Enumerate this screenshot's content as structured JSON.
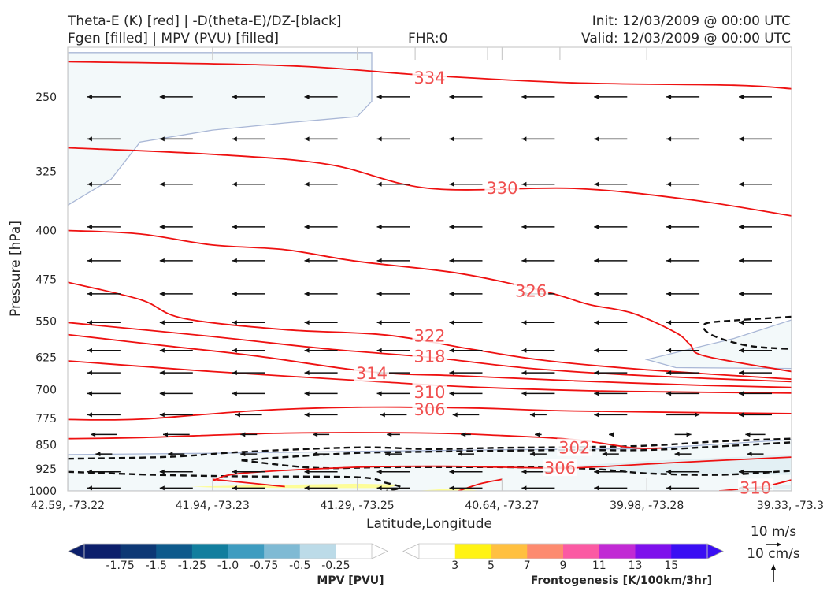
{
  "header": {
    "title_left_1": "Theta-E (K) [red] | -D(theta-E)/DZ-[black]",
    "title_left_2": "Fgen [filled] | MPV (PVU) [filled]",
    "fhr": "FHR:0",
    "init": "Init: 12/03/2009 @ 00:00 UTC",
    "valid": "Valid: 12/03/2009 @ 00:00 UTC"
  },
  "chart_data": {
    "type": "cross-section",
    "ylabel": "Pressure [hPa]",
    "xlabel": "Latitude,Longitude",
    "y_ticks": [
      "250",
      "325",
      "400",
      "475",
      "550",
      "625",
      "700",
      "775",
      "850",
      "925",
      "1000"
    ],
    "y_tick_values": [
      250,
      325,
      400,
      475,
      550,
      625,
      700,
      775,
      850,
      925,
      1000
    ],
    "x_ticks": [
      "42.59, -73.22",
      "41.94, -73.23",
      "41.29, -73.25",
      "40.64, -73.27",
      "39.98, -73.28",
      "39.33, -73.3"
    ],
    "ylim": [
      1000,
      210
    ],
    "xlim": [
      0,
      5
    ],
    "y_log": true,
    "grid": false,
    "theta_e_color": "#ee1111",
    "theta_e_contours": [
      {
        "label": "334",
        "label_pos": [
          2.5,
          234
        ],
        "points": [
          [
            0,
            221
          ],
          [
            1.5,
            224
          ],
          [
            2.5,
            232
          ],
          [
            3.5,
            238
          ],
          [
            4.6,
            240
          ],
          [
            5,
            243
          ]
        ]
      },
      {
        "label": "330",
        "label_pos": [
          3.0,
          345
        ],
        "points": [
          [
            0,
            299
          ],
          [
            1,
            306
          ],
          [
            1.8,
            317
          ],
          [
            2.5,
            345
          ],
          [
            3.5,
            345
          ],
          [
            4.3,
            359
          ],
          [
            5,
            380
          ]
        ]
      },
      {
        "label": "326",
        "label_pos": [
          3.2,
          495
        ],
        "points": [
          [
            0,
            400
          ],
          [
            0.5,
            405
          ],
          [
            1,
            421
          ],
          [
            1.5,
            428
          ],
          [
            2,
            446
          ],
          [
            2.7,
            465
          ],
          [
            3.3,
            496
          ],
          [
            3.6,
            519
          ],
          [
            3.9,
            535
          ],
          [
            4.2,
            573
          ],
          [
            4.3,
            598
          ],
          [
            4.4,
            622
          ],
          [
            5,
            657
          ]
        ]
      },
      {
        "label": "322",
        "label_pos": [
          2.5,
          580
        ],
        "points": [
          [
            0,
            480
          ],
          [
            0.5,
            510
          ],
          [
            0.8,
            545
          ],
          [
            1.5,
            567
          ],
          [
            2.2,
            578
          ],
          [
            2.8,
            608
          ],
          [
            3.3,
            632
          ],
          [
            4,
            653
          ],
          [
            5,
            675
          ]
        ]
      },
      {
        "label": "318",
        "label_pos": [
          2.5,
          623
        ],
        "points": [
          [
            0,
            553
          ],
          [
            1,
            581
          ],
          [
            1.8,
            607
          ],
          [
            2.5,
            625
          ],
          [
            3.2,
            650
          ],
          [
            4,
            667
          ],
          [
            5,
            681
          ]
        ]
      },
      {
        "label": "314",
        "label_pos": [
          2.1,
          662
        ],
        "points": [
          [
            0,
            577
          ],
          [
            0.7,
            601
          ],
          [
            1.3,
            622
          ],
          [
            2.1,
            658
          ],
          [
            2.7,
            667
          ],
          [
            3.5,
            679
          ],
          [
            4.4,
            690
          ],
          [
            5,
            695
          ]
        ]
      },
      {
        "label": "310",
        "label_pos": [
          2.5,
          707
        ],
        "points": [
          [
            0,
            633
          ],
          [
            0.5,
            645
          ],
          [
            1,
            657
          ],
          [
            2.1,
            680
          ],
          [
            2.8,
            694
          ],
          [
            3.6,
            703
          ],
          [
            4.2,
            706
          ],
          [
            5,
            709
          ]
        ]
      },
      {
        "label": "306",
        "label_pos": [
          2.5,
          752
        ],
        "points": [
          [
            0,
            778
          ],
          [
            0.5,
            777
          ],
          [
            1.3,
            754
          ],
          [
            2.0,
            745
          ],
          [
            2.8,
            747
          ],
          [
            3.5,
            755
          ],
          [
            5,
            762
          ]
        ]
      },
      {
        "label": "302",
        "label_pos": [
          3.5,
          860
        ],
        "points": [
          [
            0,
            832
          ],
          [
            0.5,
            829
          ],
          [
            1.5,
            816
          ],
          [
            2.5,
            816
          ],
          [
            3.0,
            823
          ],
          [
            3.5,
            835
          ],
          [
            3.9,
            859
          ],
          [
            4.1,
            860
          ]
        ]
      },
      {
        "label": "306",
        "label_pos": [
          3.4,
          923
        ],
        "points": [
          [
            1.0,
            966
          ],
          [
            1.2,
            940
          ],
          [
            2.0,
            920
          ],
          [
            2.6,
            917
          ],
          [
            3.0,
            920
          ],
          [
            3.5,
            922
          ],
          [
            4.2,
            905
          ],
          [
            5,
            888
          ]
        ]
      },
      {
        "label": "310",
        "label_pos": [
          4.75,
          990
        ],
        "points": [
          [
            4.5,
            1000
          ],
          [
            4.8,
            985
          ],
          [
            5,
            962
          ]
        ]
      },
      {
        "label": "",
        "label_pos": null,
        "points": [
          [
            1.0,
            960
          ],
          [
            1.5,
            985
          ]
        ]
      },
      {
        "label": "",
        "label_pos": null,
        "points": [
          [
            2.7,
            1000
          ],
          [
            2.85,
            975
          ],
          [
            3.0,
            960
          ]
        ]
      }
    ],
    "dthetae_dz_color": "#111111",
    "dthetae_dz_contours": [
      [
        [
          0,
          893
        ],
        [
          0.7,
          887
        ],
        [
          1.2,
          872
        ],
        [
          2.0,
          858
        ],
        [
          2.5,
          863
        ],
        [
          3.0,
          859
        ],
        [
          3.5,
          857
        ],
        [
          4.0,
          853
        ],
        [
          4.5,
          840
        ],
        [
          5,
          832
        ]
      ],
      [
        [
          1.2,
          898
        ],
        [
          1.5,
          888
        ],
        [
          2.0,
          875
        ],
        [
          2.5,
          871
        ],
        [
          3.0,
          868
        ],
        [
          3.5,
          866
        ],
        [
          4.0,
          866
        ],
        [
          4.5,
          855
        ],
        [
          5,
          843
        ]
      ],
      [
        [
          0,
          935
        ],
        [
          0.6,
          945
        ],
        [
          1.2,
          950
        ],
        [
          2.0,
          953
        ],
        [
          2.2,
          972
        ],
        [
          2.3,
          988
        ],
        [
          2.2,
          1000
        ]
      ],
      [
        [
          1.2,
          898
        ],
        [
          1.7,
          922
        ],
        [
          2.2,
          920
        ],
        [
          3.0,
          920
        ],
        [
          3.6,
          925
        ],
        [
          4.0,
          940
        ],
        [
          4.5,
          945
        ],
        [
          5,
          932
        ]
      ],
      [
        [
          5,
          542
        ],
        [
          4.6,
          549
        ],
        [
          4.4,
          556
        ],
        [
          4.45,
          578
        ],
        [
          4.7,
          600
        ],
        [
          5,
          607
        ]
      ]
    ],
    "mpv_levels": [
      -1.75,
      -1.5,
      -1.25,
      -1.0,
      -0.75,
      -0.5,
      -0.25
    ],
    "mpv_colors": [
      "#0c1f6b",
      "#0d3875",
      "#0e5a8c",
      "#127e9e",
      "#3e9cc0",
      "#7fbad4",
      "#bcdbe8",
      "#ffffff"
    ],
    "mpv_regions": [
      {
        "color": "#f3f9fa",
        "edge": "#a9b7d6",
        "points": [
          [
            0,
            366
          ],
          [
            0.3,
            334
          ],
          [
            0.5,
            293
          ],
          [
            1.0,
            281
          ],
          [
            1.5,
            274
          ],
          [
            2.0,
            268
          ],
          [
            2.1,
            254
          ],
          [
            2.1,
            214
          ],
          [
            0,
            214
          ]
        ]
      },
      {
        "color": "#f3f9fa",
        "edge": "#a9b7d6",
        "points": [
          [
            5,
            548
          ],
          [
            4.6,
            585
          ],
          [
            4.0,
            630
          ],
          [
            4.2,
            648
          ],
          [
            5,
            650
          ]
        ]
      },
      {
        "color": "#f3f9fa",
        "edge": "#a9b7d6",
        "points": [
          [
            0,
            880
          ],
          [
            1.0,
            876
          ],
          [
            2.0,
            870
          ],
          [
            3.0,
            865
          ],
          [
            4.0,
            862
          ],
          [
            5,
            835
          ],
          [
            5,
            1000
          ],
          [
            0,
            1000
          ]
        ]
      },
      {
        "color": "#e3f0f4",
        "edge": "none",
        "points": [
          [
            3.5,
            915
          ],
          [
            4.0,
            900
          ],
          [
            5,
            880
          ],
          [
            5,
            945
          ],
          [
            4.0,
            940
          ]
        ]
      },
      {
        "color": "#e3f0f4",
        "edge": "none",
        "points": [
          [
            4.7,
            985
          ],
          [
            5,
            980
          ],
          [
            5,
            995
          ]
        ]
      }
    ],
    "fgen_levels": [
      3,
      5,
      7,
      9,
      11,
      13,
      15
    ],
    "fgen_colors": [
      "#ffffff",
      "#fff314",
      "#ffc040",
      "#fd8b6f",
      "#fb5aa3",
      "#c12ad4",
      "#7e10ec",
      "#3a0ef3"
    ],
    "fgen_regions": [
      {
        "color": "#fdfd98",
        "points": [
          [
            0.85,
            985
          ],
          [
            1.3,
            980
          ],
          [
            2.0,
            975
          ],
          [
            2.3,
            978
          ],
          [
            2.2,
            990
          ],
          [
            1.6,
            990
          ],
          [
            1.0,
            988
          ]
        ]
      },
      {
        "color": "#fdfd98",
        "points": [
          [
            2.4,
            1000
          ],
          [
            2.7,
            990
          ],
          [
            2.85,
            1000
          ]
        ]
      }
    ],
    "wind_barbs": {
      "rows_hpa": [
        250,
        290,
        340,
        395,
        445,
        500,
        553,
        610,
        660,
        710,
        765,
        820,
        878,
        935,
        990
      ],
      "xs": [
        0.25,
        0.75,
        1.25,
        1.75,
        2.25,
        2.75,
        3.25,
        3.75,
        4.25,
        4.75
      ],
      "default_u_ms": -10,
      "row_u_overrides": {
        "765": [
          -10,
          -10,
          -8,
          -10,
          -8,
          -8,
          -5,
          -10,
          10,
          -10
        ],
        "820": [
          -8,
          -8,
          -5,
          -5,
          -4,
          -3,
          -2,
          -1,
          5,
          -6
        ],
        "878": [
          -5,
          -5,
          -5,
          -5,
          -5,
          -5,
          -5,
          -5,
          -5,
          -5
        ]
      }
    },
    "mpv_colorbar": {
      "label": "MPV [PVU]",
      "ticks": [
        "-1.75",
        "-1.5",
        "-1.25",
        "-1.0",
        "-0.75",
        "-0.5",
        "-0.25"
      ]
    },
    "fgen_colorbar": {
      "label": "Frontogenesis [K/100km/3hr]",
      "ticks": [
        "3",
        "5",
        "7",
        "9",
        "11",
        "13",
        "15"
      ]
    },
    "vector_key": {
      "u_label": "10 m/s",
      "w_label": "10 cm/s"
    }
  }
}
